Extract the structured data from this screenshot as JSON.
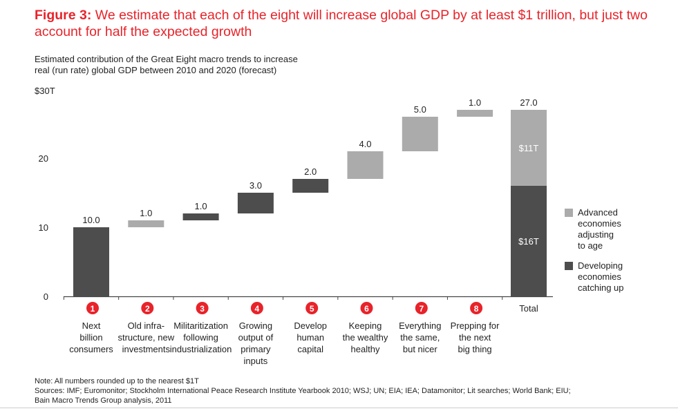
{
  "figure": {
    "title_lead": "Figure 3:",
    "title_text": "We estimate that each of the eight will increase global GDP by at least $1 trillion, but just two account for half the expected growth",
    "subtitle_line1": "Estimated contribution of the Great Eight macro trends to increase",
    "subtitle_line2": "real (run rate) global GDP between 2010 and 2020 (forecast)",
    "y_unit_label": "$30T"
  },
  "footer": {
    "note": "Note: All numbers rounded up to the nearest $1T",
    "sources_line1": "Sources: IMF; Euromonitor; Stockholm International Peace Research Institute Yearbook 2010; WSJ; UN; EIA; IEA; Datamonitor; Lit searches; World Bank; EIU;",
    "sources_line2": "Bain Macro Trends Group analysis, 2011"
  },
  "colors": {
    "developing": "#4d4d4d",
    "advanced": "#ababab",
    "badge": "#e8232a",
    "title": "#e8232a"
  },
  "chart_data": {
    "type": "bar",
    "subtype": "waterfall",
    "ylim": [
      0,
      30
    ],
    "yticks": [
      0,
      10,
      20
    ],
    "ytick_labels": [
      "0",
      "10",
      "20"
    ],
    "steps": [
      {
        "number": "1",
        "label_lines": [
          "Next",
          "billion",
          "consumers"
        ],
        "value": 10.0,
        "value_label": "10.0",
        "type": "developing"
      },
      {
        "number": "2",
        "label_lines": [
          "Old infra-",
          "structure, new",
          "investments"
        ],
        "value": 1.0,
        "value_label": "1.0",
        "type": "advanced"
      },
      {
        "number": "3",
        "label_lines": [
          "Militaritization",
          "following",
          "industrialization"
        ],
        "value": 1.0,
        "value_label": "1.0",
        "type": "developing"
      },
      {
        "number": "4",
        "label_lines": [
          "Growing",
          "output of",
          "primary",
          "inputs"
        ],
        "value": 3.0,
        "value_label": "3.0",
        "type": "developing"
      },
      {
        "number": "5",
        "label_lines": [
          "Develop",
          "human",
          "capital"
        ],
        "value": 2.0,
        "value_label": "2.0",
        "type": "developing"
      },
      {
        "number": "6",
        "label_lines": [
          "Keeping",
          "the wealthy",
          "healthy"
        ],
        "value": 4.0,
        "value_label": "4.0",
        "type": "advanced"
      },
      {
        "number": "7",
        "label_lines": [
          "Everything",
          "the same,",
          "but nicer"
        ],
        "value": 5.0,
        "value_label": "5.0",
        "type": "advanced"
      },
      {
        "number": "8",
        "label_lines": [
          "Prepping for",
          "the next",
          "big thing"
        ],
        "value": 1.0,
        "value_label": "1.0",
        "type": "advanced"
      }
    ],
    "total": {
      "label": "Total",
      "value": 27.0,
      "value_label": "27.0",
      "segments": [
        {
          "name": "Developing economies catching up",
          "value": 16,
          "label": "$16T",
          "type": "developing"
        },
        {
          "name": "Advanced economies adjusting to age",
          "value": 11,
          "label": "$11T",
          "type": "advanced"
        }
      ]
    },
    "legend": [
      {
        "type": "advanced",
        "lines": [
          "Advanced",
          "economies",
          "adjusting",
          "to age"
        ]
      },
      {
        "type": "developing",
        "lines": [
          "Developing",
          "economies",
          "catching up"
        ]
      }
    ],
    "legend_position": "right"
  }
}
